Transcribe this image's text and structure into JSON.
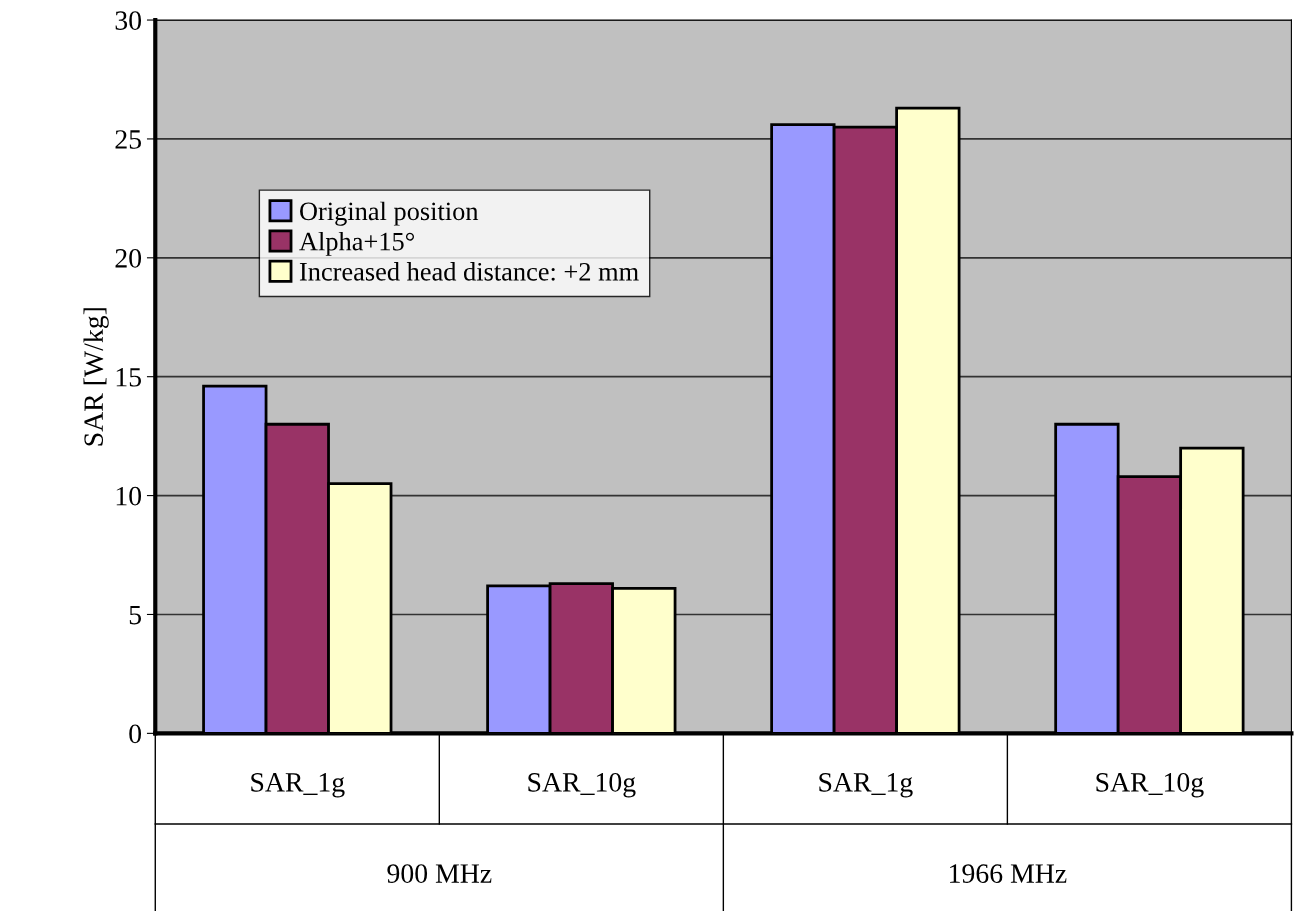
{
  "chart_data": {
    "type": "bar",
    "ylabel": "SAR [W/kg]",
    "categories": [
      "SAR_1g",
      "SAR_10g",
      "SAR_1g",
      "SAR_10g"
    ],
    "series": [
      {
        "name": "Original position",
        "color": "#9999ff",
        "values": [
          14.6,
          6.2,
          25.6,
          13.0
        ]
      },
      {
        "name": "Alpha+15°",
        "color": "#993366",
        "values": [
          13.0,
          6.3,
          25.5,
          10.8
        ]
      },
      {
        "name": "Increased head distance: +2 mm",
        "color": "#ffffcc",
        "values": [
          10.5,
          6.1,
          26.3,
          12.0
        ]
      }
    ],
    "annotations": [
      "900 MHz",
      "1966 MHz"
    ],
    "ylim": [
      0,
      30
    ],
    "yticks": [
      0,
      5,
      10,
      15,
      20,
      25,
      30
    ],
    "grid": "y",
    "legend": "top left"
  }
}
